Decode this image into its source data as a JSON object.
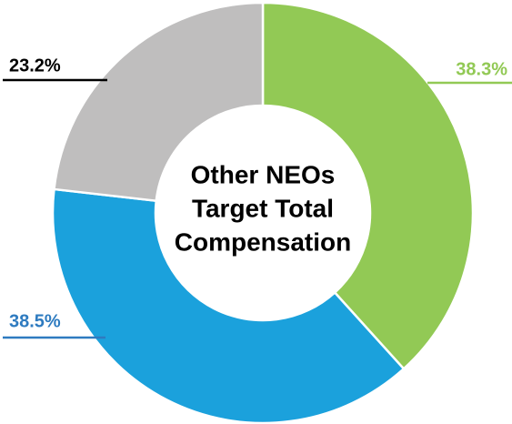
{
  "chart_data": {
    "type": "donut",
    "center_text": [
      "Other NEOs",
      "Target Total",
      "Compensation"
    ],
    "values": [
      38.3,
      38.5,
      23.2
    ],
    "value_labels": [
      "38.3%",
      "38.5%",
      "23.2%"
    ],
    "colors": [
      "#92c955",
      "#1ba1dc",
      "#bfbebe"
    ],
    "label_colors": [
      "#92c955",
      "#2e7bc0",
      "#000000"
    ]
  }
}
